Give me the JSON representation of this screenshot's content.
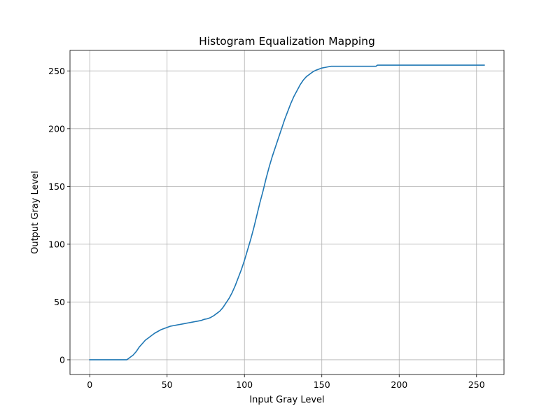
{
  "chart_data": {
    "type": "line",
    "title": "Histogram Equalization Mapping",
    "xlabel": "Input Gray Level",
    "ylabel": "Output Gray Level",
    "xlim": [
      -12.75,
      267.75
    ],
    "ylim": [
      -12.75,
      267.75
    ],
    "xticks": [
      0,
      50,
      100,
      150,
      200,
      250
    ],
    "yticks": [
      0,
      50,
      100,
      150,
      200,
      250
    ],
    "grid": true,
    "series_color": "#1f77b4",
    "series": [
      {
        "x": [
          0,
          24,
          26,
          28,
          30,
          32,
          34,
          36,
          38,
          40,
          42,
          44,
          46,
          48,
          50,
          52,
          54,
          56,
          58,
          60,
          62,
          64,
          66,
          68,
          70,
          72,
          74,
          76,
          78,
          80,
          82,
          84,
          86,
          88,
          90,
          92,
          94,
          96,
          98,
          100,
          102,
          104,
          106,
          108,
          110,
          112,
          114,
          116,
          118,
          120,
          122,
          124,
          126,
          128,
          130,
          132,
          134,
          136,
          138,
          140,
          142,
          144,
          146,
          148,
          150,
          152,
          154,
          156,
          158,
          160,
          162,
          164,
          168,
          175,
          180,
          185,
          186,
          200,
          220,
          240,
          255
        ],
        "y": [
          0,
          0,
          2,
          4,
          7,
          11,
          14,
          17,
          19,
          21,
          23,
          24.5,
          26,
          27,
          28,
          29,
          29.5,
          30,
          30.5,
          31,
          31.5,
          32,
          32.5,
          33,
          33.5,
          34,
          35,
          35.5,
          36.5,
          38,
          40,
          42,
          45,
          49,
          53,
          58,
          64,
          71,
          78,
          86,
          95,
          104,
          114,
          125,
          136,
          146,
          157,
          167,
          176,
          184,
          192,
          200,
          208,
          215,
          222,
          228,
          233,
          238,
          242,
          245,
          247,
          249,
          250.5,
          251.5,
          252.5,
          253,
          253.5,
          254,
          254,
          254,
          254,
          254,
          254,
          254,
          254,
          254,
          255,
          255,
          255,
          255,
          255
        ]
      }
    ]
  }
}
